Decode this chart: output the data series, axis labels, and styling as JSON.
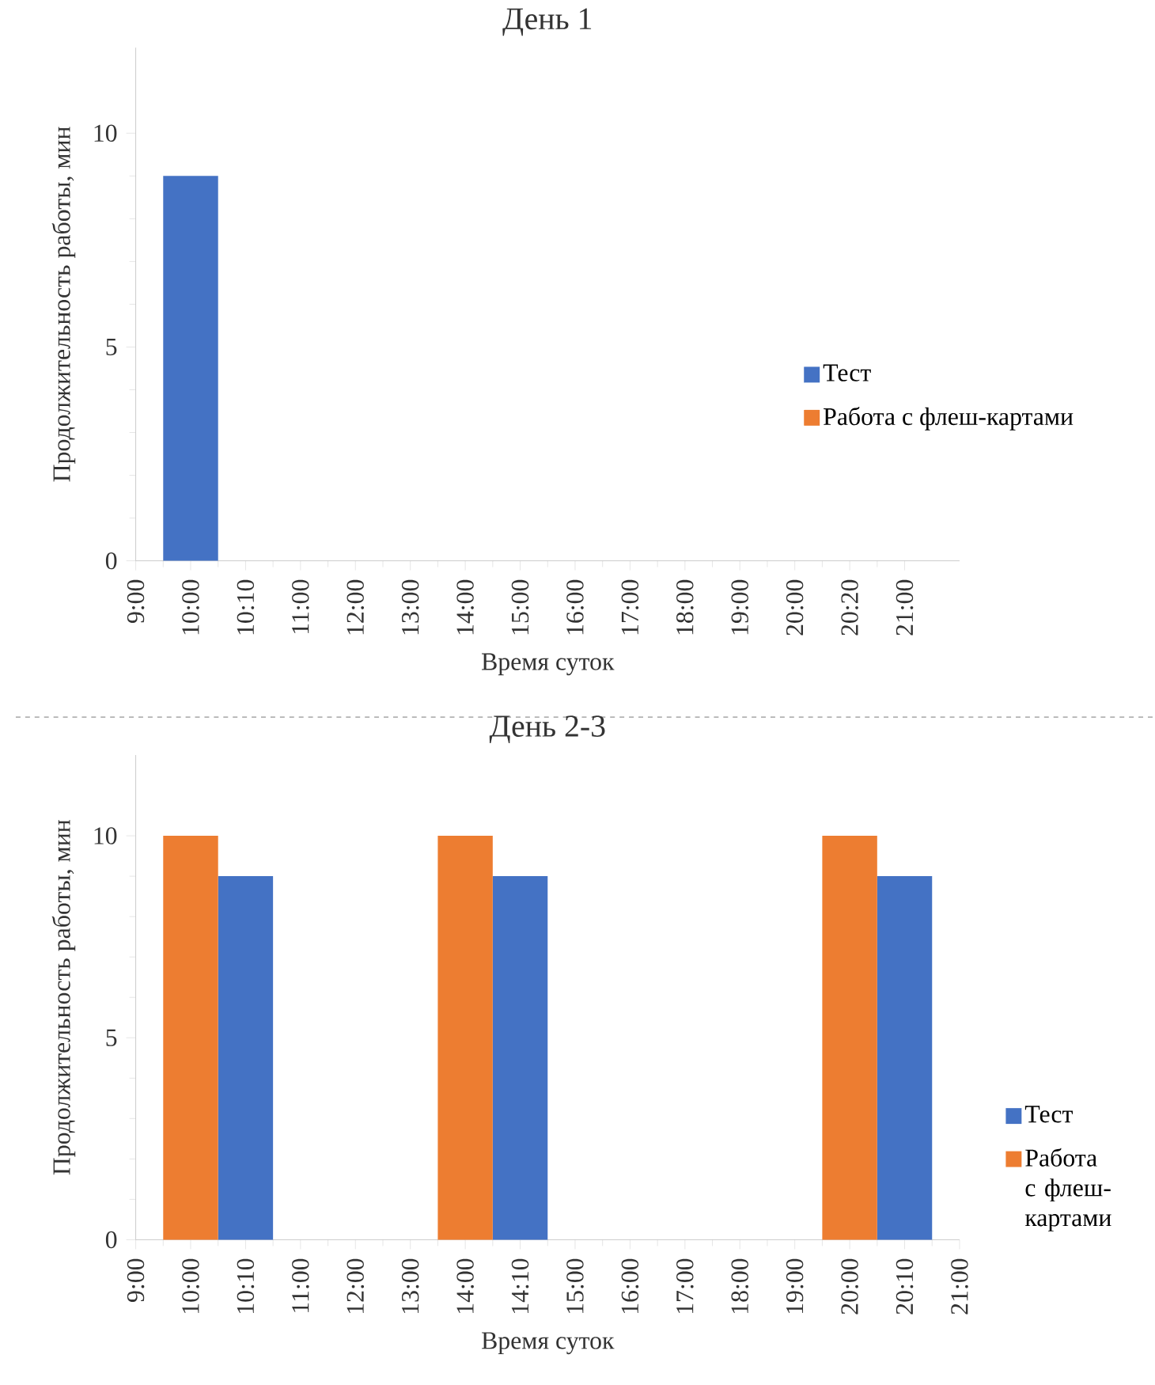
{
  "chart_data": [
    {
      "type": "bar",
      "title": "День 1",
      "xlabel": "Время суток",
      "ylabel": "Продолжительность работы, мин",
      "categories": [
        "9:00",
        "10:00",
        "10:10",
        "11:00",
        "12:00",
        "13:00",
        "14:00",
        "15:00",
        "16:00",
        "17:00",
        "18:00",
        "19:00",
        "20:00",
        "20:20",
        "21:00"
      ],
      "series": [
        {
          "name": "Тест",
          "color": "#4472c4",
          "values": [
            null,
            9,
            null,
            null,
            null,
            null,
            null,
            null,
            null,
            null,
            null,
            null,
            null,
            null,
            null
          ]
        },
        {
          "name": "Работа с флеш-картами",
          "color": "#ed7d31",
          "values": [
            null,
            null,
            null,
            null,
            null,
            null,
            null,
            null,
            null,
            null,
            null,
            null,
            null,
            null,
            null
          ]
        }
      ],
      "ylim": [
        0,
        12
      ],
      "yticks": [
        0,
        5,
        10
      ],
      "legend": "right",
      "grid": false
    },
    {
      "type": "bar",
      "title": "День 2-3",
      "xlabel": "Время суток",
      "ylabel": "Продолжительность работы, мин",
      "categories": [
        "9:00",
        "10:00",
        "10:10",
        "11:00",
        "12:00",
        "13:00",
        "14:00",
        "14:10",
        "15:00",
        "16:00",
        "17:00",
        "18:00",
        "19:00",
        "20:00",
        "20:10",
        "21:00"
      ],
      "series": [
        {
          "name": "Тест",
          "color": "#4472c4",
          "values": [
            null,
            null,
            9,
            null,
            null,
            null,
            null,
            9,
            null,
            null,
            null,
            null,
            null,
            null,
            9,
            null
          ]
        },
        {
          "name": "Работа с флеш-картами",
          "color": "#ed7d31",
          "values": [
            null,
            10,
            null,
            null,
            null,
            null,
            10,
            null,
            null,
            null,
            null,
            null,
            null,
            10,
            null,
            null
          ]
        }
      ],
      "ylim": [
        0,
        12
      ],
      "yticks": [
        0,
        5,
        10
      ],
      "legend": "right",
      "grid": false
    }
  ]
}
